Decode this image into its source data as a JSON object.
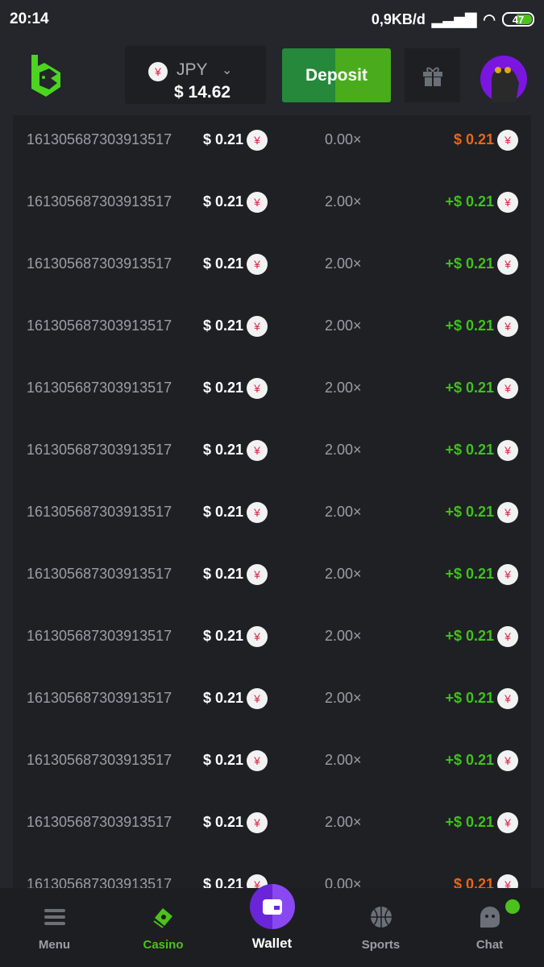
{
  "status": {
    "time": "20:14",
    "network": "0,9KB/d",
    "battery": "47"
  },
  "header": {
    "currency": "JPY",
    "balance": "$ 14.62",
    "deposit_label": "Deposit",
    "yen_symbol": "¥"
  },
  "colors": {
    "win": "#3fc21c",
    "loss": "#f06414",
    "accent": "#4cc21c",
    "wallet": "#7b3ae6"
  },
  "rows": [
    {
      "id": "161305687303913517",
      "bet": "$ 0.21",
      "multiplier": "0.00×",
      "payout": "$ 0.21",
      "win": false
    },
    {
      "id": "161305687303913517",
      "bet": "$ 0.21",
      "multiplier": "2.00×",
      "payout": "+$ 0.21",
      "win": true
    },
    {
      "id": "161305687303913517",
      "bet": "$ 0.21",
      "multiplier": "2.00×",
      "payout": "+$ 0.21",
      "win": true
    },
    {
      "id": "161305687303913517",
      "bet": "$ 0.21",
      "multiplier": "2.00×",
      "payout": "+$ 0.21",
      "win": true
    },
    {
      "id": "161305687303913517",
      "bet": "$ 0.21",
      "multiplier": "2.00×",
      "payout": "+$ 0.21",
      "win": true
    },
    {
      "id": "161305687303913517",
      "bet": "$ 0.21",
      "multiplier": "2.00×",
      "payout": "+$ 0.21",
      "win": true
    },
    {
      "id": "161305687303913517",
      "bet": "$ 0.21",
      "multiplier": "2.00×",
      "payout": "+$ 0.21",
      "win": true
    },
    {
      "id": "161305687303913517",
      "bet": "$ 0.21",
      "multiplier": "2.00×",
      "payout": "+$ 0.21",
      "win": true
    },
    {
      "id": "161305687303913517",
      "bet": "$ 0.21",
      "multiplier": "2.00×",
      "payout": "+$ 0.21",
      "win": true
    },
    {
      "id": "161305687303913517",
      "bet": "$ 0.21",
      "multiplier": "2.00×",
      "payout": "+$ 0.21",
      "win": true
    },
    {
      "id": "161305687303913517",
      "bet": "$ 0.21",
      "multiplier": "2.00×",
      "payout": "+$ 0.21",
      "win": true
    },
    {
      "id": "161305687303913517",
      "bet": "$ 0.21",
      "multiplier": "2.00×",
      "payout": "+$ 0.21",
      "win": true
    },
    {
      "id": "161305687303913517",
      "bet": "$ 0.21",
      "multiplier": "0.00×",
      "payout": "$ 0.21",
      "win": false
    }
  ],
  "nav": {
    "menu": "Menu",
    "casino": "Casino",
    "wallet": "Wallet",
    "sports": "Sports",
    "chat": "Chat"
  }
}
